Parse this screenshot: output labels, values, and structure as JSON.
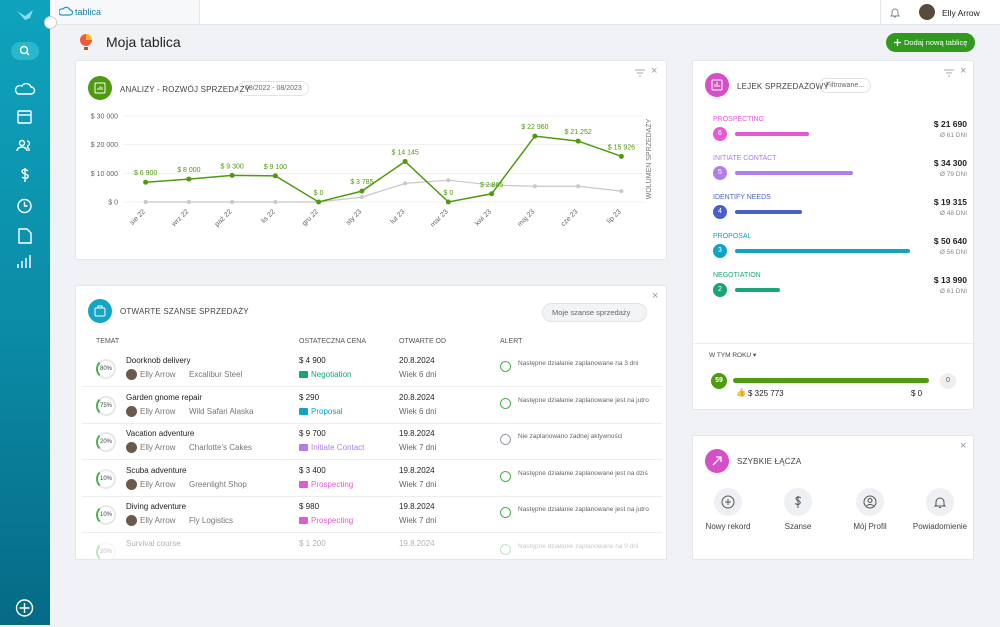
{
  "header": {
    "app": "tablica",
    "user": "Elly Arrow"
  },
  "page": {
    "title": "Moja tablica",
    "add_button": "Dodaj nową tablicę"
  },
  "chart_data": {
    "type": "line",
    "title": "ANALIZY - ROZWÓJ SPRZEDAŻY",
    "subtitle": "08/2022 - 08/2023",
    "y_label": "WOLUMEN SPRZEDAŻY",
    "categories": [
      "sie 22",
      "wrz 22",
      "paź 22",
      "lis 22",
      "gru 22",
      "sty 23",
      "lut 23",
      "mar 23",
      "kwi 23",
      "maj 23",
      "cze 23",
      "lip 23"
    ],
    "series": [
      {
        "color": "#4f9a0f",
        "values": [
          6900,
          8000,
          9300,
          9100,
          0,
          3785,
          14145,
          0,
          2865,
          22960,
          21252,
          15926
        ],
        "value_labels": [
          "$ 6 900",
          "$ 8 000",
          "$ 9 300",
          "$ 9 100",
          "$ 0",
          "$ 3 785",
          "$ 14 145",
          "$ 0",
          "$ 2 865",
          "$ 22 960",
          "$ 21 252",
          "$ 15 926"
        ]
      },
      {
        "color": "#c8c8cc",
        "values": [
          0,
          0,
          0,
          0,
          0,
          1700,
          6500,
          7600,
          5900,
          5500,
          5500,
          3800
        ]
      }
    ],
    "ylim": [
      0,
      30000
    ],
    "yticks": [
      {
        "value": 0,
        "label": "$ 0"
      },
      {
        "value": 10000,
        "label": "$ 10 000"
      },
      {
        "value": 20000,
        "label": "$ 20 000"
      },
      {
        "value": 30000,
        "label": "$ 30 000"
      }
    ],
    "grid": true
  },
  "opportunities": {
    "title": "OTWARTE SZANSE SPRZEDAŻY",
    "filter": "Moje szanse sprzedaży",
    "columns": [
      "TEMAT",
      "OSTATECZNA CENA",
      "OTWARTE OD",
      "ALERT"
    ],
    "rows": [
      {
        "progress": "80%",
        "name": "Doorknob delivery",
        "owner": "Elly Arrow",
        "company": "Excalibur Steel",
        "price": "$ 4 900",
        "stage": "Negotiation",
        "stage_color": "#17a67a",
        "date": "20.8.2024",
        "age": "Wiek 6 dni",
        "alert": "Następne działanie zaplanowane na 3 dni"
      },
      {
        "progress": "75%",
        "name": "Garden gnome repair",
        "owner": "Elly Arrow",
        "company": "Wild Safari Alaska",
        "price": "$ 290",
        "stage": "Proposal",
        "stage_color": "#12a3c4",
        "date": "20.8.2024",
        "age": "Wiek 6 dni",
        "alert": "Następne działanie zaplanowane jest na jutro"
      },
      {
        "progress": "20%",
        "name": "Vacation adventure",
        "owner": "Elly Arrow",
        "company": "Charlotte's Cakes",
        "price": "$ 9 700",
        "stage": "Initiate Contact",
        "stage_color": "#b07ee8",
        "date": "19.8.2024",
        "age": "Wiek 7 dni",
        "alert": "Nie zaplanowano żadnej aktywności"
      },
      {
        "progress": "10%",
        "name": "Scuba adventure",
        "owner": "Elly Arrow",
        "company": "Greenlight Shop",
        "price": "$ 3 400",
        "stage": "Prospecting",
        "stage_color": "#e25ad4",
        "date": "19.8.2024",
        "age": "Wiek 7 dni",
        "alert": "Następne działanie zaplanowane jest na dziś"
      },
      {
        "progress": "10%",
        "name": "Diving adventure",
        "owner": "Elly Arrow",
        "company": "Fly Logistics",
        "price": "$ 980",
        "stage": "Prospecting",
        "stage_color": "#e25ad4",
        "date": "19.8.2024",
        "age": "Wiek 7 dni",
        "alert": "Następne działanie zaplanowane jest na jutro"
      },
      {
        "progress": "20%",
        "name": "Survival course",
        "price": "$ 1 200",
        "date": "19.8.2024",
        "alert": "Następne działanie zaplanowane na 9 dni"
      }
    ]
  },
  "funnel": {
    "title": "LEJEK SPRZEDAŻOWY",
    "filter": "Filtrowane...",
    "stages": [
      {
        "name": "PROSPECTING",
        "count": "6",
        "amount": "$ 21 690",
        "days": "Ø 61 DNI",
        "color": "#e25ad4"
      },
      {
        "name": "INITIATE CONTACT",
        "count": "5",
        "amount": "$ 34 300",
        "days": "Ø 79 DNI",
        "color": "#b07ee8"
      },
      {
        "name": "IDENTIFY NEEDS",
        "count": "4",
        "amount": "$ 19 315",
        "days": "Ø 48 DNI",
        "color": "#4a5fc8"
      },
      {
        "name": "PROPOSAL",
        "count": "3",
        "amount": "$ 50 640",
        "days": "Ø 56 DNI",
        "color": "#12a3c4"
      },
      {
        "name": "NEGOTIATION",
        "count": "2",
        "amount": "$ 13 990",
        "days": "Ø 61 DNI",
        "color": "#17a67a"
      }
    ],
    "period": "W TYM ROKU",
    "won_count": "59",
    "lost_count": "0",
    "won_amount": "$ 325 773",
    "lost_amount": "$ 0"
  },
  "quick_links": {
    "title": "SZYBKIE ŁĄCZA",
    "items": [
      "Nowy rekord",
      "Szanse",
      "Mój Profil",
      "Powiadomienie"
    ]
  }
}
